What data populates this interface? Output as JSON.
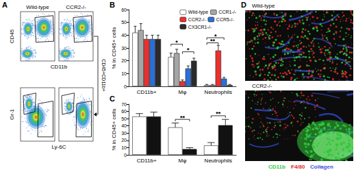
{
  "panels": {
    "A": {
      "panel": "A",
      "columns": [
        "Wild-type",
        "CCR2-/-"
      ],
      "top": {
        "y_label": "CD45",
        "x_label": "CD11b"
      },
      "gate_label": "CD45+CD11b+",
      "bottom": {
        "y_label": "Gr-1",
        "x_label": "Ly-6C"
      }
    },
    "D": {
      "panel": "D",
      "images": [
        "Wild-type",
        "CCR2-/-"
      ],
      "stains": [
        {
          "name": "CD11b",
          "color": "#2fc83a"
        },
        {
          "name": "F4/80",
          "color": "#e02a2a"
        },
        {
          "name": "Collagen",
          "color": "#3a4fe0"
        }
      ]
    }
  },
  "chart_data": [
    {
      "panel": "B",
      "type": "bar",
      "y_label": "% in CD45+ cells",
      "categories": [
        "CD11b+",
        "Mφ",
        "Neutrophils"
      ],
      "series": [
        {
          "name": "Wild-type",
          "color": "#ffffff",
          "values": [
            42,
            23,
            1
          ],
          "errors": [
            5,
            3,
            0.5
          ]
        },
        {
          "name": "CCR1-/-",
          "color": "#a6a6a6",
          "values": [
            44,
            26,
            1
          ],
          "errors": [
            5,
            3,
            0.5
          ]
        },
        {
          "name": "CCR2-/-",
          "color": "#e8312f",
          "values": [
            37,
            4,
            28
          ],
          "errors": [
            3,
            1,
            4
          ]
        },
        {
          "name": "CCR5-/-",
          "color": "#2a6fd6",
          "values": [
            37,
            14,
            6
          ],
          "errors": [
            3,
            2,
            1
          ]
        },
        {
          "name": "CX3CR1-/-",
          "color": "#2b2b2b",
          "values": [
            37,
            20,
            1
          ],
          "errors": [
            3,
            2,
            0.5
          ]
        }
      ],
      "ylim": [
        0,
        60
      ],
      "yticks": [
        0,
        10,
        20,
        30,
        40,
        50,
        60
      ],
      "legend": "top-right",
      "significance": [
        {
          "category": 1,
          "between": [
            0,
            2
          ],
          "y": 33,
          "label": "*"
        },
        {
          "category": 1,
          "between": [
            2,
            4
          ],
          "y": 27,
          "label": "*"
        },
        {
          "category": 2,
          "between": [
            0,
            3
          ],
          "y": 38,
          "label": "*"
        },
        {
          "category": 2,
          "between": [
            0,
            2
          ],
          "y": 34,
          "label": "**"
        }
      ]
    },
    {
      "panel": "C",
      "type": "bar",
      "y_label": "% in CD45+ cells",
      "categories": [
        "CD11b+",
        "Mφ",
        "Neutrophils"
      ],
      "series": [
        {
          "color": "#ffffff",
          "values": [
            53,
            38,
            13
          ],
          "errors": [
            4,
            6,
            4
          ]
        },
        {
          "color": "#111111",
          "values": [
            53,
            8,
            41
          ],
          "errors": [
            6,
            2,
            8
          ]
        }
      ],
      "ylim": [
        0,
        70
      ],
      "yticks": [
        0,
        10,
        20,
        30,
        40,
        50,
        60,
        70
      ],
      "significance": [
        {
          "category": 1,
          "between": [
            0,
            1
          ],
          "y": 49,
          "label": "**"
        },
        {
          "category": 2,
          "between": [
            0,
            1
          ],
          "y": 54,
          "label": "**"
        }
      ]
    }
  ]
}
